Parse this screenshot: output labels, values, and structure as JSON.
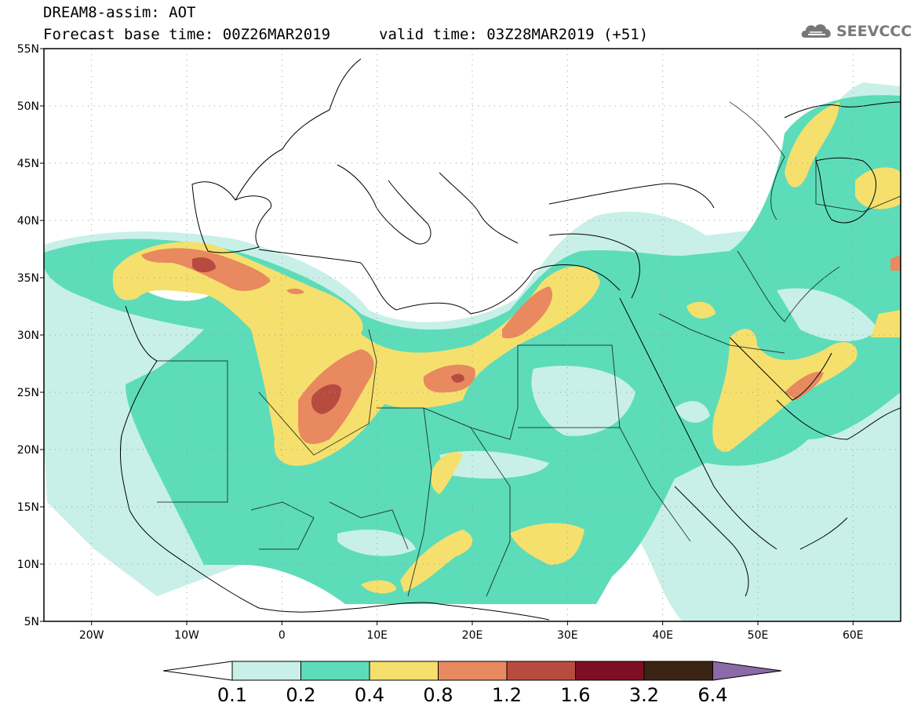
{
  "header": {
    "title": "DREAM8-assim: AOT",
    "base_time": "Forecast base time: 00Z26MAR2019",
    "valid_time": "valid time: 03Z28MAR2019 (+51)"
  },
  "logo": {
    "text": "SEEVCCC",
    "icon": "cloud-icon"
  },
  "map": {
    "lat_labels": [
      "55N",
      "50N",
      "45N",
      "40N",
      "35N",
      "30N",
      "25N",
      "20N",
      "15N",
      "10N",
      "5N"
    ],
    "lon_labels": [
      "20W",
      "10W",
      "0",
      "10E",
      "20E",
      "30E",
      "40E",
      "50E",
      "60E"
    ],
    "lat_range": [
      5,
      55
    ],
    "lon_range": [
      -25,
      65
    ],
    "grid": "dotted"
  },
  "colorbar": {
    "labels": [
      "0.1",
      "0.2",
      "0.4",
      "0.8",
      "1.2",
      "1.6",
      "3.2",
      "6.4"
    ],
    "colors": [
      "#ffffff",
      "#c8f0e8",
      "#5ddcb9",
      "#f5e06e",
      "#e8895f",
      "#b84b3f",
      "#7d0f23",
      "#3b2414",
      "#8b6aa8"
    ]
  }
}
